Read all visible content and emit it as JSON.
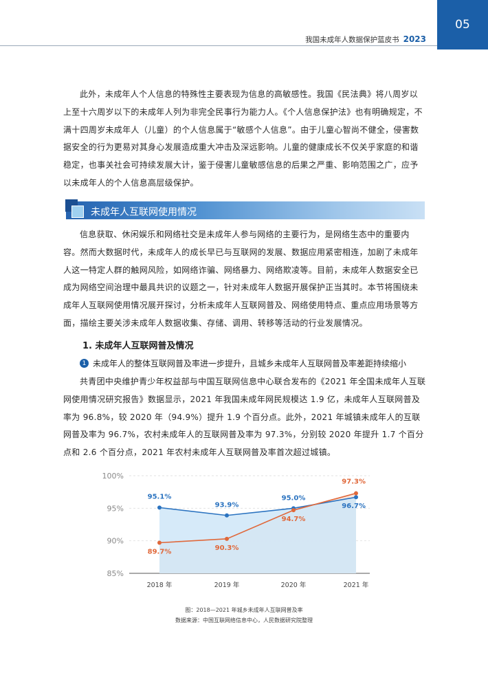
{
  "header": {
    "title": "我国未成年人数据保护蓝皮书",
    "year": "2023",
    "page_number": "05"
  },
  "paragraph1": "此外，未成年人个人信息的特殊性主要表现为信息的高敏感性。我国《民法典》将八周岁以上至十六周岁以下的未成年人列为非完全民事行为能力人。《个人信息保护法》也有明确规定，不满十四周岁未成年人（儿童）的个人信息属于“敏感个人信息”。由于儿童心智尚不健全，侵害数据安全的行为更易对其身心发展造成重大冲击及深远影响。儿童的健康成长不仅关乎家庭的和谐稳定，也事关社会可持续发展大计，鉴于侵害儿童敏感信息的后果之严重、影响范围之广，应予以未成年人的个人信息高层级保护。",
  "section": {
    "title": "未成年人互联网使用情况"
  },
  "paragraph2": "信息获取、休闲娱乐和网络社交是未成年人参与网络的主要行为，是网络生态中的重要内容。然而大数据时代，未成年人的成长早已与互联网的发展、数据应用紧密相连，加剧了未成年人这一特定人群的触网风险，如网络诈骗、网络暴力、网络欺凌等。目前，未成年人数据安全已成为网络空间治理中最具共识的议题之一，针对未成年人数据开展保护正当其时。本节将围绕未成年人互联网使用情况展开探讨，分析未成年人互联网普及、网络使用特点、重点应用场景等方面，描绘主要关涉未成年人数据收集、存储、调用、转移等活动的行业发展情况。",
  "subheading": "1. 未成年人互联网普及情况",
  "bullet": {
    "number": "1",
    "text": "未成年人的整体互联网普及率进一步提升，且城乡未成年人互联网普及率差距持续缩小"
  },
  "paragraph3": "共青团中央维护青少年权益部与中国互联网信息中心联合发布的《2021 年全国未成年人互联网使用情况研究报告》数据显示，2021 年我国未成年网民规模达 1.9 亿，未成年人互联网普及率为 96.8%，较 2020 年（94.9%）提升 1.9 个百分点。此外，2021 年城镇未成年人的互联网普及率为 96.7%，农村未成年人的互联网普及率为 97.3%，分别较 2020 年提升 1.7 个百分点和 2.6 个百分点，2021 年农村未成年人互联网普及率首次超过城镇。",
  "chart_data": {
    "type": "line",
    "categories": [
      "2018 年",
      "2019 年",
      "2020 年",
      "2021 年"
    ],
    "y_ticks": [
      "85%",
      "90%",
      "95%",
      "100%"
    ],
    "ylim": [
      85,
      100
    ],
    "series": [
      {
        "values": [
          95.1,
          93.9,
          95.0,
          96.7
        ],
        "labels": [
          "95.1%",
          "93.9%",
          "95.0%",
          "96.7%"
        ],
        "color": "#2b73c0",
        "fill": "#cfe6f8"
      },
      {
        "values": [
          89.7,
          90.3,
          94.7,
          97.3
        ],
        "labels": [
          "89.7%",
          "90.3%",
          "94.7%",
          "97.3%"
        ],
        "color": "#e0683a",
        "fill": "#f8e2d8"
      }
    ]
  },
  "caption": {
    "title": "图：2018—2021 年城乡未成年人互联网普及率",
    "source": "数据来源：中国互联网络信息中心，人民数据研究院整理"
  }
}
